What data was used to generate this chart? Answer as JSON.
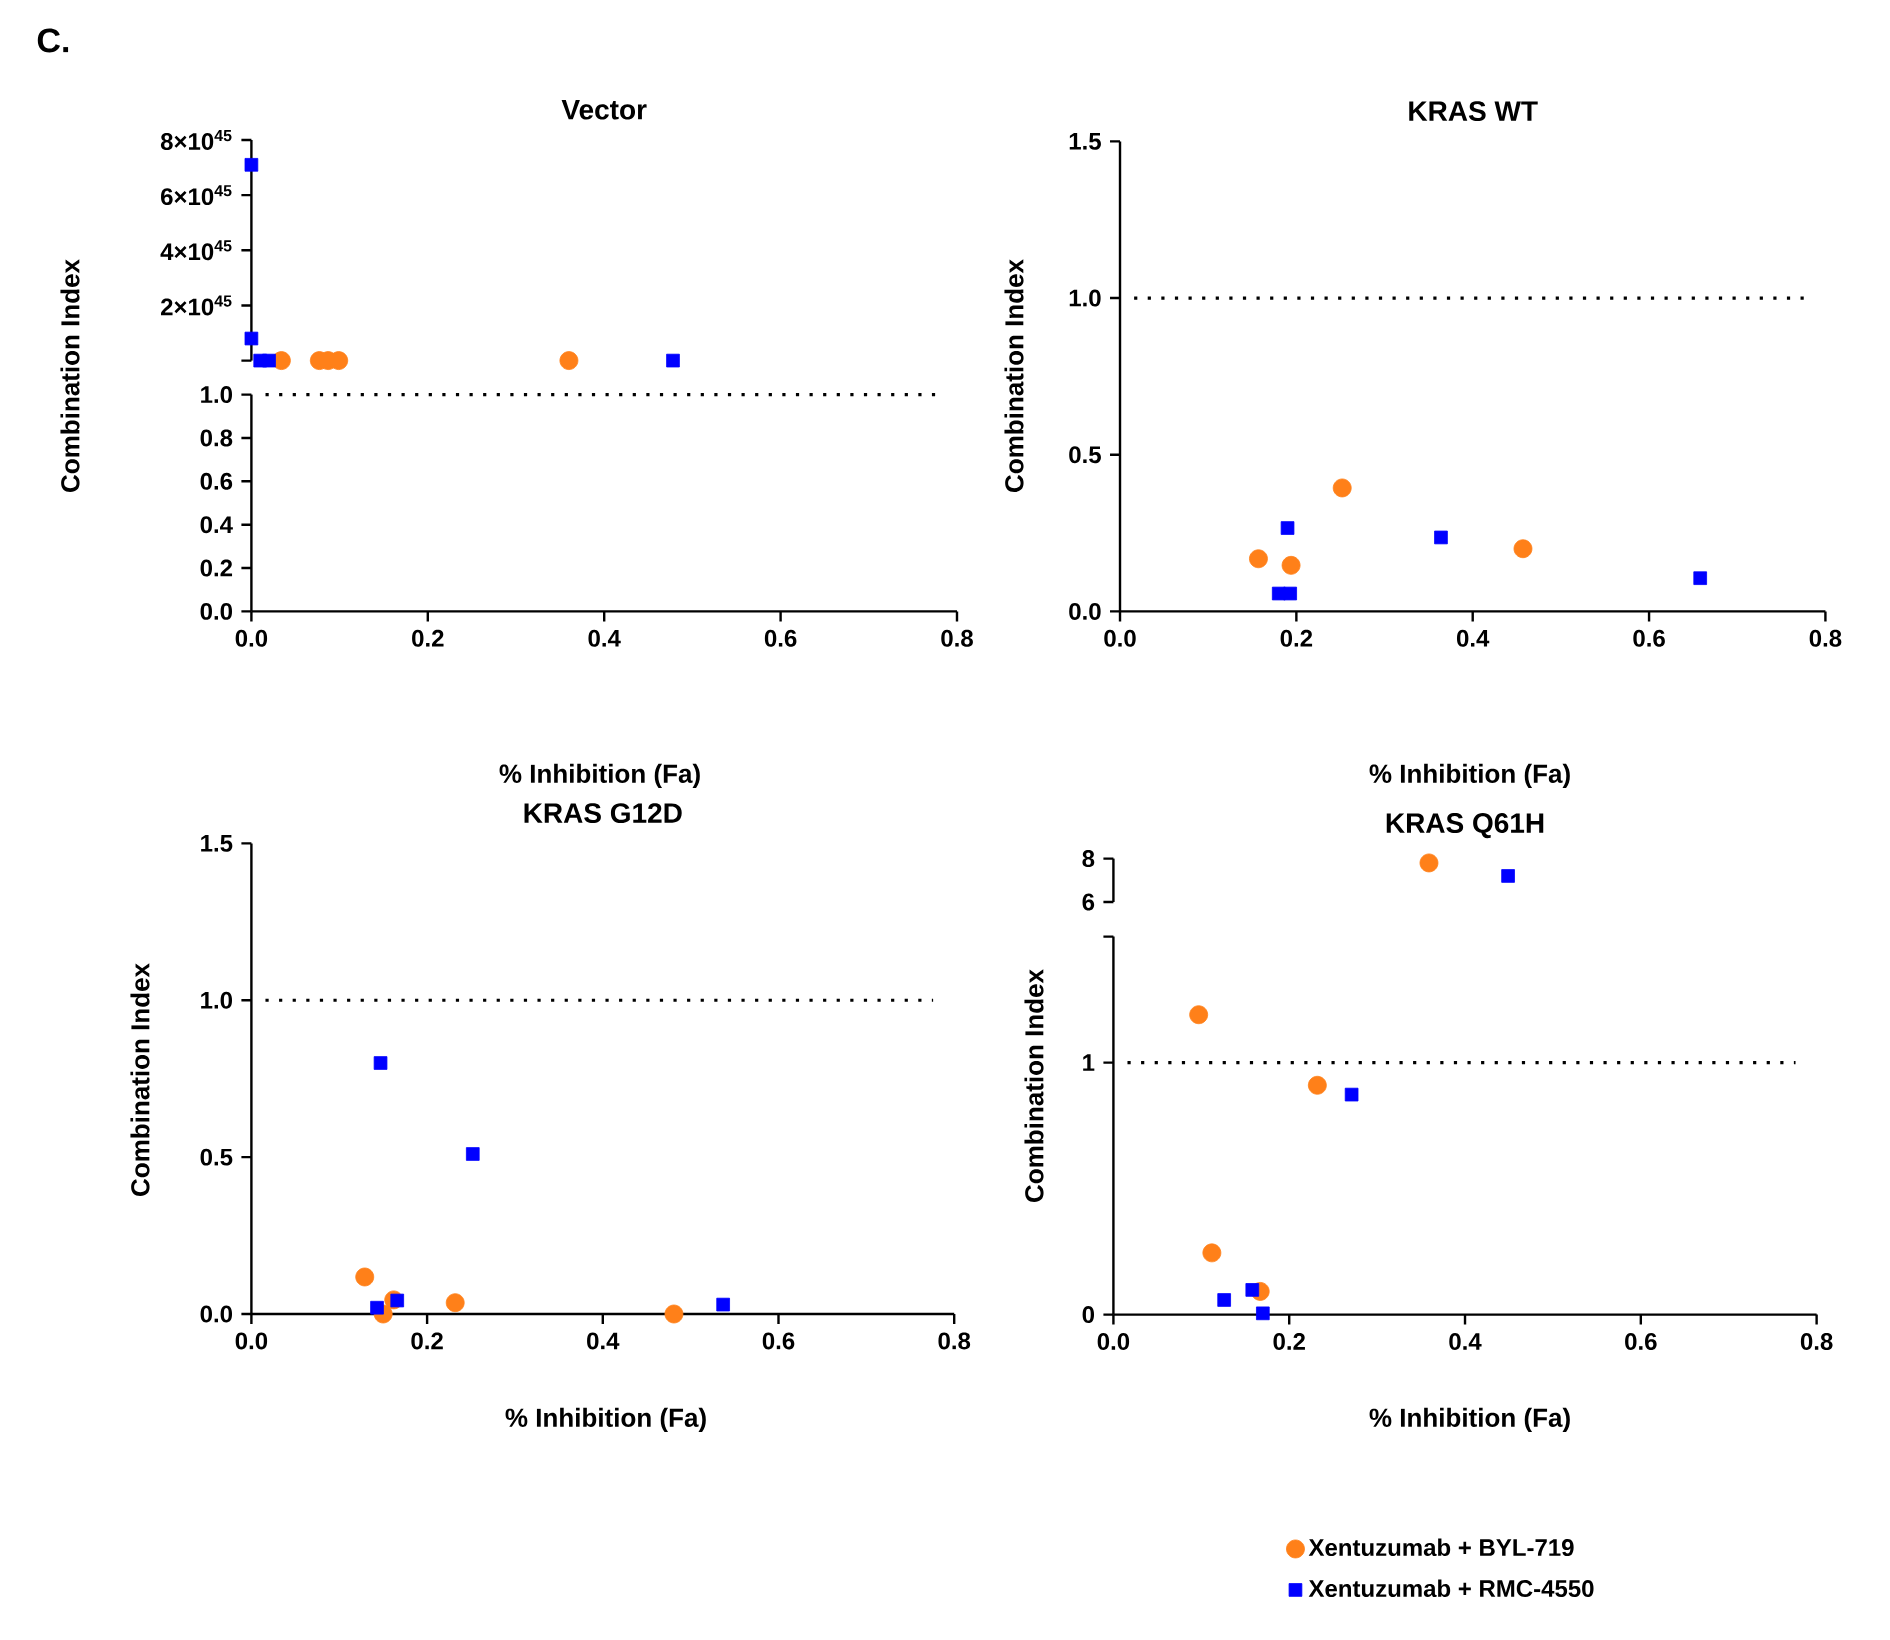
{
  "chart_data": [
    {
      "type": "scatter",
      "title": "Vector",
      "annotations": [
        "C."
      ],
      "xlim": [
        0,
        0.8
      ],
      "ylim": [
        0,
        8e+45
      ],
      "tick_labels": "y",
      "yticks": [
        {
          "value": 0,
          "label": null
        },
        {
          "value": 2e+45,
          "label": "2×10$^{45}$"
        },
        {
          "value": 4e+45,
          "label": "4×10$^{45}$"
        },
        {
          "value": 6e+45,
          "label": "6×10$^{45}$"
        },
        {
          "value": 8e+45,
          "label": "8×10$^{45}$"
        }
      ],
      "series": [
        {
          "color": "#ff8019",
          "marker": "circle",
          "x": [
            0.034,
            0.077,
            0.087,
            0.099,
            0.36
          ],
          "values": [
            0,
            0,
            0,
            0,
            0
          ]
        },
        {
          "color": "#0000ff",
          "marker": "square",
          "x": [
            0,
            0,
            0.01,
            0.02,
            0.478
          ],
          "values": [
            7.1e+45,
            8e+44,
            0,
            0,
            0
          ]
        }
      ]
    },
    {
      "type": "scatter",
      "xlabel": "% Inhibition (Fa)",
      "ylabel": "Combination Index",
      "xlim": [
        0,
        0.8
      ],
      "ylim": [
        0,
        1
      ],
      "xticks": [
        {
          "value": 0,
          "label": "0.0"
        },
        {
          "value": 0.2,
          "label": "0.2"
        },
        {
          "value": 0.4,
          "label": "0.4"
        },
        {
          "value": 0.6,
          "label": "0.6"
        },
        {
          "value": 0.8,
          "label": "0.8"
        }
      ],
      "yticks": [
        {
          "value": 0,
          "label": "0.0"
        },
        {
          "value": 0.2,
          "label": "0.2"
        },
        {
          "value": 0.4,
          "label": "0.4"
        },
        {
          "value": 0.6,
          "label": "0.6"
        },
        {
          "value": 0.8,
          "label": "0.8"
        },
        {
          "value": 1,
          "label": "1.0"
        }
      ],
      "ref_lines": [
        {
          "axis": "y",
          "value": 1,
          "line_style": "dotted"
        }
      ]
    },
    {
      "type": "scatter",
      "title": "KRAS WT",
      "xlabel": "% Inhibition (Fa)",
      "ylabel": "Combination Index",
      "xlim": [
        0,
        0.8
      ],
      "ylim": [
        0,
        1.5
      ],
      "xticks": [
        {
          "value": 0,
          "label": "0.0"
        },
        {
          "value": 0.2,
          "label": "0.2"
        },
        {
          "value": 0.4,
          "label": "0.4"
        },
        {
          "value": 0.6,
          "label": "0.6"
        },
        {
          "value": 0.8,
          "label": "0.8"
        }
      ],
      "yticks": [
        {
          "value": 0,
          "label": "0.0"
        },
        {
          "value": 0.5,
          "label": "0.5"
        },
        {
          "value": 1,
          "label": "1.0"
        },
        {
          "value": 1.5,
          "label": "1.5"
        }
      ],
      "ref_lines": [
        {
          "axis": "y",
          "value": 1,
          "line_style": "dotted"
        }
      ],
      "series": [
        {
          "color": "#ff8019",
          "marker": "circle",
          "x": [
            0.157,
            0.194,
            0.252,
            0.457
          ],
          "values": [
            0.168,
            0.147,
            0.394,
            0.2
          ]
        },
        {
          "color": "#0000ff",
          "marker": "square",
          "x": [
            0.19,
            0.18,
            0.193,
            0.364,
            0.658
          ],
          "values": [
            0.266,
            0.057,
            0.057,
            0.236,
            0.106
          ]
        }
      ]
    },
    {
      "type": "scatter",
      "title": "KRAS G12D",
      "xlabel": "% Inhibition (Fa)",
      "ylabel": "Combination Index",
      "xlim": [
        0,
        0.8
      ],
      "ylim": [
        0,
        1.5
      ],
      "xticks": [
        {
          "value": 0,
          "label": "0.0"
        },
        {
          "value": 0.2,
          "label": "0.2"
        },
        {
          "value": 0.4,
          "label": "0.4"
        },
        {
          "value": 0.6,
          "label": "0.6"
        },
        {
          "value": 0.8,
          "label": "0.8"
        }
      ],
      "yticks": [
        {
          "value": 0,
          "label": "0.0"
        },
        {
          "value": 0.5,
          "label": "0.5"
        },
        {
          "value": 1,
          "label": "1.0"
        },
        {
          "value": 1.5,
          "label": "1.5"
        }
      ],
      "ref_lines": [
        {
          "axis": "y",
          "value": 1,
          "line_style": "dotted"
        }
      ],
      "series": [
        {
          "color": "#ff8019",
          "marker": "circle",
          "x": [
            0.129,
            0.15,
            0.162,
            0.232,
            0.481
          ],
          "values": [
            0.118,
            0.0,
            0.045,
            0.036,
            0.0
          ]
        },
        {
          "color": "#0000ff",
          "marker": "square",
          "x": [
            0.147,
            0.252,
            0.143,
            0.166,
            0.537
          ],
          "values": [
            0.8,
            0.51,
            0.02,
            0.043,
            0.03
          ]
        }
      ]
    },
    {
      "type": "scatter",
      "title": "KRAS Q61H",
      "xlim": [
        0,
        0.8
      ],
      "ylim": [
        6,
        8
      ],
      "tick_labels": "y",
      "yticks": [
        6,
        8
      ],
      "series": [
        {
          "color": "#ff8019",
          "marker": "circle",
          "x": [
            0.359
          ],
          "values": [
            7.8
          ]
        },
        {
          "color": "#0000ff",
          "marker": "square",
          "x": [
            0.449
          ],
          "values": [
            7.2
          ]
        }
      ]
    },
    {
      "type": "scatter",
      "xlabel": "% Inhibition (Fa)",
      "ylabel": "Combination Index",
      "xlim": [
        0,
        0.8
      ],
      "ylim": [
        0,
        1.5
      ],
      "legend": "bottom",
      "xticks": [
        {
          "value": 0,
          "label": "0.0"
        },
        {
          "value": 0.2,
          "label": "0.2"
        },
        {
          "value": 0.4,
          "label": "0.4"
        },
        {
          "value": 0.6,
          "label": "0.6"
        },
        {
          "value": 0.8,
          "label": "0.8"
        }
      ],
      "yticks": [
        0,
        1,
        {
          "value": 1.5,
          "label": null
        }
      ],
      "ref_lines": [
        {
          "axis": "y",
          "value": 1,
          "line_style": "dotted"
        }
      ],
      "series": [
        {
          "name": "Xentuzumab + BYL-719",
          "color": "#ff8019",
          "marker": "circle",
          "x": [
            0.097,
            0.232,
            0.112,
            0.167
          ],
          "values": [
            1.19,
            0.91,
            0.245,
            0.092
          ]
        },
        {
          "name": "Xentuzumab + RMC-4550",
          "color": "#0000ff",
          "marker": "square",
          "x": [
            0.271,
            0.126,
            0.158,
            0.17
          ],
          "values": [
            0.873,
            0.058,
            0.098,
            0.005
          ]
        }
      ]
    }
  ]
}
